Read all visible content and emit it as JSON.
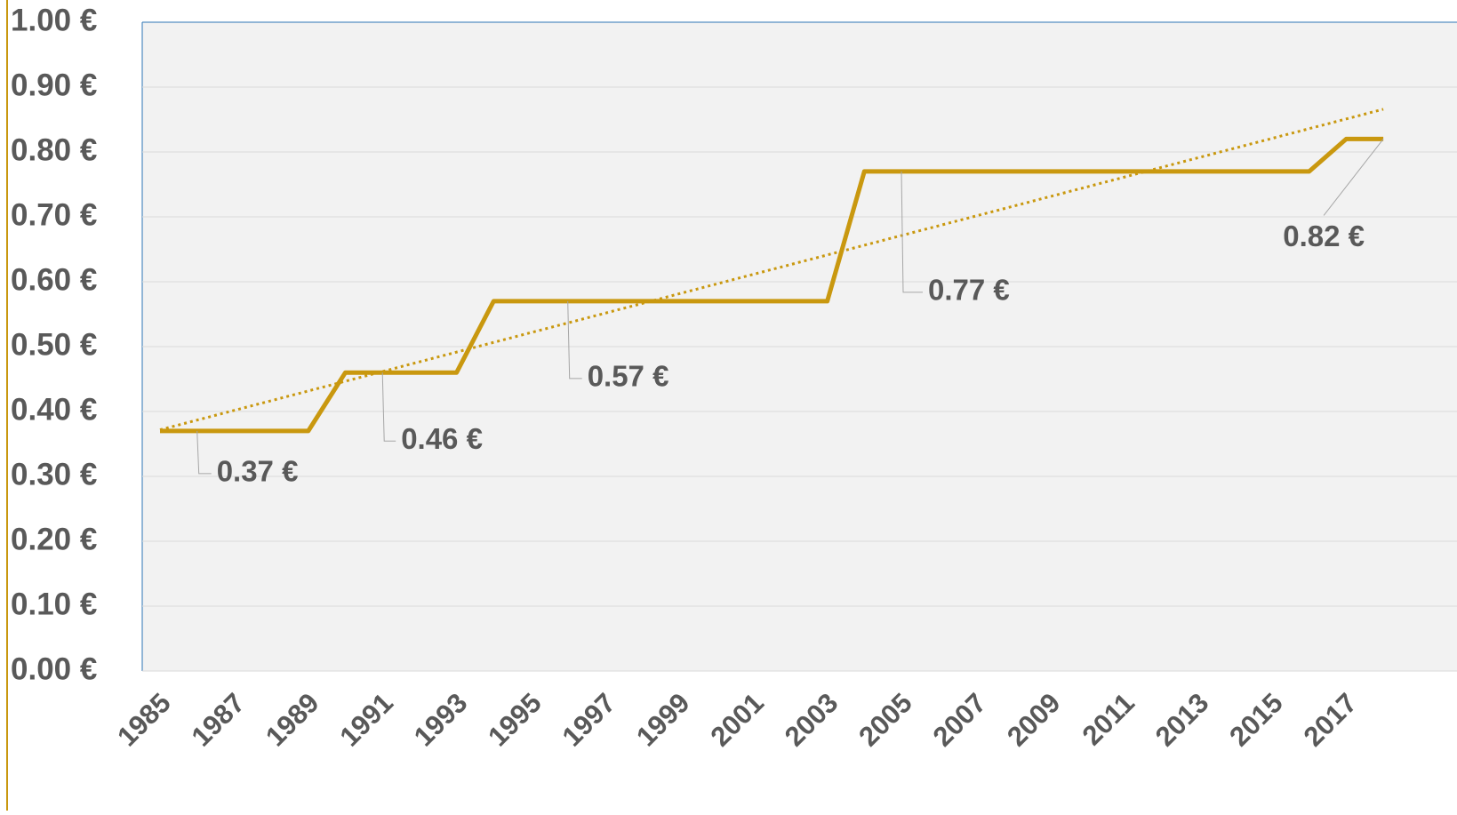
{
  "chart_data": {
    "type": "line",
    "categories": [
      1985,
      null,
      1987,
      null,
      1989,
      null,
      1991,
      null,
      1993,
      null,
      1995,
      null,
      1997,
      null,
      1999,
      null,
      2001,
      null,
      2003,
      null,
      2005,
      null,
      2007,
      null,
      2009,
      null,
      2011,
      null,
      2013,
      null,
      2015,
      null,
      2017,
      null
    ],
    "series": [
      {
        "color": "#c9980f",
        "values": [
          0.37,
          0.37,
          0.37,
          0.37,
          0.37,
          0.46,
          0.46,
          0.46,
          0.46,
          0.57,
          0.57,
          0.57,
          0.57,
          0.57,
          0.57,
          0.57,
          0.57,
          0.57,
          0.57,
          0.77,
          0.77,
          0.77,
          0.77,
          0.77,
          0.77,
          0.77,
          0.77,
          0.77,
          0.77,
          0.77,
          0.77,
          0.77,
          0.82,
          0.82
        ],
        "value_labels": [
          null,
          "0.37 €",
          null,
          null,
          null,
          null,
          "0.46 €",
          null,
          null,
          null,
          null,
          "0.57 €",
          null,
          null,
          null,
          null,
          null,
          null,
          null,
          null,
          "0.77 €",
          null,
          null,
          null,
          null,
          null,
          null,
          null,
          null,
          null,
          null,
          null,
          null,
          "0.82 €"
        ]
      }
    ],
    "trendline": true,
    "ylim": [
      0,
      1
    ],
    "yticks": [
      {
        "value": 0,
        "label": "0.00 €"
      },
      {
        "value": 0.1,
        "label": "0.10 €"
      },
      {
        "value": 0.2,
        "label": "0.20 €"
      },
      {
        "value": 0.3,
        "label": "0.30 €"
      },
      {
        "value": 0.4,
        "label": "0.40 €"
      },
      {
        "value": 0.5,
        "label": "0.50 €"
      },
      {
        "value": 0.6,
        "label": "0.60 €"
      },
      {
        "value": 0.7,
        "label": "0.70 €"
      },
      {
        "value": 0.8,
        "label": "0.80 €"
      },
      {
        "value": 0.9,
        "label": "0.90 €"
      },
      {
        "value": 1,
        "label": "1.00 €"
      }
    ],
    "grid": true
  }
}
